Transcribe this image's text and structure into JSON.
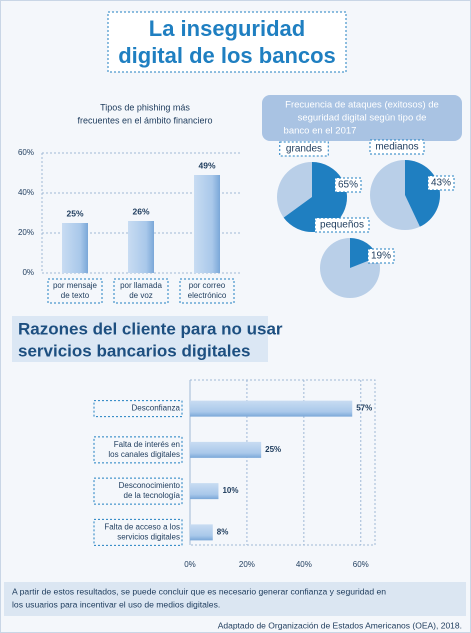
{
  "title_lines": [
    "La inseguridad",
    "digital de los bancos"
  ],
  "chart_data": [
    {
      "type": "bar",
      "title_lines": [
        "Tipos de phishing más",
        "frecuentes en el ámbito financiero"
      ],
      "categories": [
        [
          "por mensaje",
          "de texto"
        ],
        [
          "por llamada",
          "de voz"
        ],
        [
          "por correo",
          "electrónico"
        ]
      ],
      "values": [
        25,
        26,
        49
      ],
      "value_labels": [
        "25%",
        "26%",
        "49%"
      ],
      "color": "#a9c8ea",
      "ylim": [
        0,
        60
      ],
      "yticks": [
        {
          "value": 0,
          "label": "0%"
        },
        {
          "value": 20,
          "label": "20%"
        },
        {
          "value": 40,
          "label": "40%"
        },
        {
          "value": 60,
          "label": "60%"
        }
      ],
      "grid": true
    },
    {
      "type": "pie",
      "title_lines": [
        "Frecuencia de ataques (exitosos) de",
        "seguridad digital según tipo de",
        "banco en el 2017"
      ],
      "series": [
        {
          "name": "grandes",
          "values": [
            65
          ],
          "value_labels": [
            "65%"
          ]
        },
        {
          "name": "medianos",
          "values": [
            43
          ],
          "value_labels": [
            "43%"
          ]
        },
        {
          "name": "pequeños",
          "values": [
            19
          ],
          "value_labels": [
            "19%"
          ]
        }
      ],
      "color": "#1f7fc1",
      "rest_color": "#b9cfe8"
    },
    {
      "type": "barh",
      "title_lines": [
        "Razones del cliente para no usar",
        "servicios bancarios digitales"
      ],
      "categories": [
        [
          "Desconfianza"
        ],
        [
          "Falta de interés en",
          "los canales digitales"
        ],
        [
          "Desconocimiento",
          "de la tecnología"
        ],
        [
          "Falta de acceso a los",
          "servicios digitales"
        ]
      ],
      "values": [
        57,
        25,
        10,
        8
      ],
      "value_labels": [
        "57%",
        "25%",
        "10%",
        "8%"
      ],
      "color": "#a9c8ea",
      "xlim": [
        0,
        65
      ],
      "xticks": [
        {
          "value": 0,
          "label": "0%"
        },
        {
          "value": 20,
          "label": "20%"
        },
        {
          "value": 40,
          "label": "40%"
        },
        {
          "value": 60,
          "label": "60%"
        }
      ],
      "grid": true
    }
  ],
  "conclusion_lines": [
    "A partir de estos resultados, se puede concluir que es necesario generar confianza y seguridad en",
    "los usuarios para incentivar el uso de medios digitales."
  ],
  "source": "Adaptado de Organización de Estados Americanos (OEA), 2018."
}
